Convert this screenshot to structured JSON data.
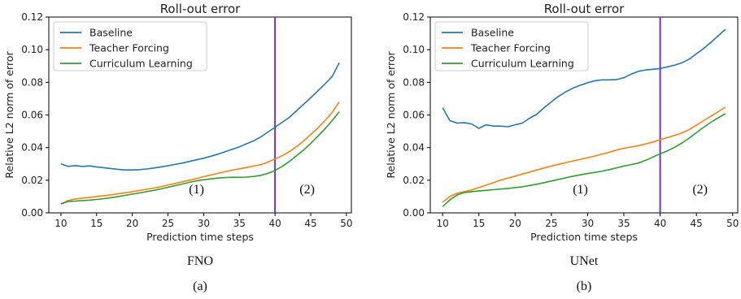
{
  "chart_data": [
    {
      "type": "line",
      "title": "Roll-out error",
      "xlabel": "Prediction time steps",
      "ylabel": "Relative L2 norm of error",
      "xlim": [
        8.3,
        50.7
      ],
      "ylim": [
        0.0,
        0.12
      ],
      "xticks": [
        10,
        15,
        20,
        25,
        30,
        35,
        40,
        45,
        50
      ],
      "yticks": [
        0.0,
        0.02,
        0.04,
        0.06,
        0.08,
        0.1,
        0.12
      ],
      "ytick_labels": [
        "0.00",
        "0.02",
        "0.04",
        "0.06",
        "0.08",
        "0.10",
        "0.12"
      ],
      "grid": false,
      "legend_position": "top-left",
      "vline": {
        "x": 40,
        "color": "#7b2fbe"
      },
      "region_labels": [
        {
          "text": "(1)",
          "x": 29,
          "y": 0.012
        },
        {
          "text": "(2)",
          "x": 44.5,
          "y": 0.012
        }
      ],
      "model_label": "FNO",
      "panel_label": "(a)",
      "series": [
        {
          "name": "Baseline",
          "color": "#1f77b4",
          "x": [
            10,
            11,
            12,
            13,
            14,
            15,
            16,
            17,
            18,
            19,
            20,
            21,
            22,
            23,
            24,
            25,
            26,
            27,
            28,
            29,
            30,
            31,
            32,
            33,
            34,
            35,
            36,
            37,
            38,
            39,
            40,
            41,
            42,
            43,
            44,
            45,
            46,
            47,
            48,
            49
          ],
          "y": [
            0.03,
            0.0285,
            0.029,
            0.0285,
            0.0288,
            0.0282,
            0.0277,
            0.0272,
            0.0267,
            0.0263,
            0.0263,
            0.0265,
            0.0269,
            0.0275,
            0.0282,
            0.0289,
            0.0297,
            0.0305,
            0.0315,
            0.0325,
            0.0335,
            0.0347,
            0.036,
            0.0375,
            0.039,
            0.0405,
            0.0423,
            0.0441,
            0.0465,
            0.0495,
            0.0525,
            0.0555,
            0.0585,
            0.0625,
            0.0665,
            0.0705,
            0.0748,
            0.079,
            0.0835,
            0.092
          ]
        },
        {
          "name": "Teacher Forcing",
          "color": "#ff7f0e",
          "x": [
            10,
            11,
            12,
            13,
            14,
            15,
            16,
            17,
            18,
            19,
            20,
            21,
            22,
            23,
            24,
            25,
            26,
            27,
            28,
            29,
            30,
            31,
            32,
            33,
            34,
            35,
            36,
            37,
            38,
            39,
            40,
            41,
            42,
            43,
            44,
            45,
            46,
            47,
            48,
            49
          ],
          "y": [
            0.0055,
            0.0075,
            0.0085,
            0.009,
            0.0095,
            0.01,
            0.0105,
            0.011,
            0.0117,
            0.0123,
            0.013,
            0.0137,
            0.0145,
            0.0152,
            0.016,
            0.017,
            0.018,
            0.019,
            0.02,
            0.021,
            0.0222,
            0.0232,
            0.0242,
            0.0252,
            0.0262,
            0.027,
            0.0278,
            0.0287,
            0.0296,
            0.031,
            0.033,
            0.035,
            0.0375,
            0.0405,
            0.044,
            0.048,
            0.052,
            0.0565,
            0.0615,
            0.068
          ]
        },
        {
          "name": "Curriculum Learning",
          "color": "#2ca02c",
          "x": [
            10,
            11,
            12,
            13,
            14,
            15,
            16,
            17,
            18,
            19,
            20,
            21,
            22,
            23,
            24,
            25,
            26,
            27,
            28,
            29,
            30,
            31,
            32,
            33,
            34,
            35,
            36,
            37,
            38,
            39,
            40,
            41,
            42,
            43,
            44,
            45,
            46,
            47,
            48,
            49
          ],
          "y": [
            0.0055,
            0.007,
            0.0072,
            0.0075,
            0.0078,
            0.0082,
            0.0087,
            0.0093,
            0.01,
            0.0107,
            0.0115,
            0.0122,
            0.013,
            0.0138,
            0.0147,
            0.0157,
            0.0167,
            0.0177,
            0.0187,
            0.0196,
            0.0203,
            0.0208,
            0.0213,
            0.0216,
            0.0218,
            0.0218,
            0.0219,
            0.0223,
            0.023,
            0.0242,
            0.026,
            0.0285,
            0.0315,
            0.035,
            0.0385,
            0.0425,
            0.047,
            0.0515,
            0.0565,
            0.062
          ]
        }
      ]
    },
    {
      "type": "line",
      "title": "Roll-out error",
      "xlabel": "Prediction time steps",
      "ylabel": "Relative L2 norm of error",
      "xlim": [
        8.3,
        50.7
      ],
      "ylim": [
        0.0,
        0.12
      ],
      "xticks": [
        10,
        15,
        20,
        25,
        30,
        35,
        40,
        45,
        50
      ],
      "yticks": [
        0.0,
        0.02,
        0.04,
        0.06,
        0.08,
        0.1,
        0.12
      ],
      "ytick_labels": [
        "0.00",
        "0.02",
        "0.04",
        "0.06",
        "0.08",
        "0.10",
        "0.12"
      ],
      "grid": false,
      "legend_position": "top-left",
      "vline": {
        "x": 40,
        "color": "#7b2fbe"
      },
      "region_labels": [
        {
          "text": "(1)",
          "x": 29,
          "y": 0.012
        },
        {
          "text": "(2)",
          "x": 45.5,
          "y": 0.012
        }
      ],
      "model_label": "UNet",
      "panel_label": "(b)",
      "series": [
        {
          "name": "Baseline",
          "color": "#1f77b4",
          "x": [
            10,
            11,
            12,
            13,
            14,
            15,
            16,
            17,
            18,
            19,
            20,
            21,
            22,
            23,
            24,
            25,
            26,
            27,
            28,
            29,
            30,
            31,
            32,
            33,
            34,
            35,
            36,
            37,
            38,
            39,
            40,
            41,
            42,
            43,
            44,
            45,
            46,
            47,
            48,
            49
          ],
          "y": [
            0.0645,
            0.0565,
            0.055,
            0.0552,
            0.0545,
            0.0518,
            0.054,
            0.0532,
            0.0532,
            0.0528,
            0.054,
            0.055,
            0.058,
            0.0605,
            0.0645,
            0.068,
            0.0715,
            0.0742,
            0.0765,
            0.0782,
            0.0797,
            0.081,
            0.0815,
            0.0815,
            0.0817,
            0.0828,
            0.085,
            0.0868,
            0.0876,
            0.088,
            0.0885,
            0.0895,
            0.0905,
            0.092,
            0.0942,
            0.0975,
            0.1008,
            0.1045,
            0.1085,
            0.1125
          ]
        },
        {
          "name": "Teacher Forcing",
          "color": "#ff7f0e",
          "x": [
            10,
            11,
            12,
            13,
            14,
            15,
            16,
            17,
            18,
            19,
            20,
            21,
            22,
            23,
            24,
            25,
            26,
            27,
            28,
            29,
            30,
            31,
            32,
            33,
            34,
            35,
            36,
            37,
            38,
            39,
            40,
            41,
            42,
            43,
            44,
            45,
            46,
            47,
            48,
            49
          ],
          "y": [
            0.0065,
            0.01,
            0.012,
            0.013,
            0.014,
            0.0155,
            0.017,
            0.0185,
            0.02,
            0.0213,
            0.0225,
            0.0238,
            0.025,
            0.0263,
            0.0275,
            0.0287,
            0.0298,
            0.0308,
            0.0318,
            0.0328,
            0.0338,
            0.0348,
            0.036,
            0.0372,
            0.0385,
            0.0396,
            0.0404,
            0.0412,
            0.0422,
            0.0434,
            0.0448,
            0.0461,
            0.0475,
            0.049,
            0.051,
            0.0538,
            0.0565,
            0.0592,
            0.062,
            0.0648
          ]
        },
        {
          "name": "Curriculum Learning",
          "color": "#2ca02c",
          "x": [
            10,
            11,
            12,
            13,
            14,
            15,
            16,
            17,
            18,
            19,
            20,
            21,
            22,
            23,
            24,
            25,
            26,
            27,
            28,
            29,
            30,
            31,
            32,
            33,
            34,
            35,
            36,
            37,
            38,
            39,
            40,
            41,
            42,
            43,
            44,
            45,
            46,
            47,
            48,
            49
          ],
          "y": [
            0.0038,
            0.008,
            0.011,
            0.0125,
            0.013,
            0.0135,
            0.0138,
            0.0142,
            0.0146,
            0.015,
            0.0155,
            0.016,
            0.0168,
            0.0176,
            0.0185,
            0.0195,
            0.0205,
            0.0215,
            0.0225,
            0.0233,
            0.0241,
            0.0248,
            0.0256,
            0.0265,
            0.0276,
            0.0287,
            0.0296,
            0.0305,
            0.0322,
            0.0342,
            0.0362,
            0.038,
            0.0402,
            0.0428,
            0.0458,
            0.0492,
            0.0525,
            0.0555,
            0.0582,
            0.0608
          ]
        }
      ]
    }
  ]
}
